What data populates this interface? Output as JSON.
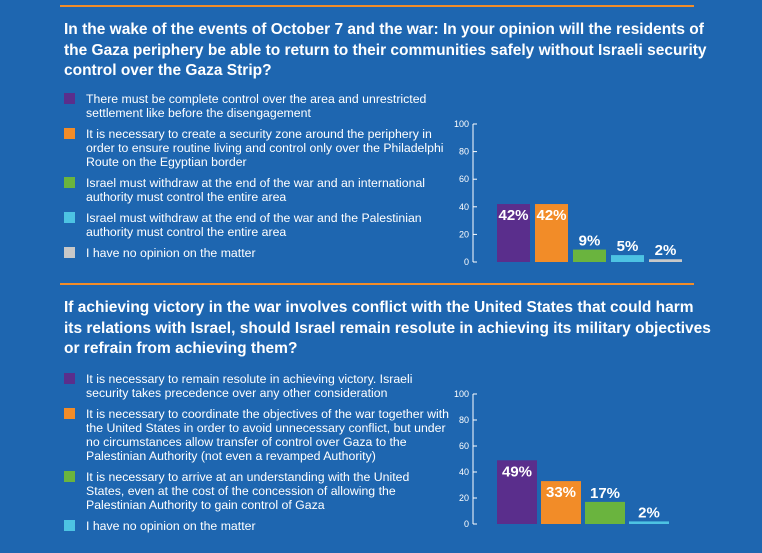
{
  "colors": {
    "background": "#1e66b0",
    "rule": "#f28c28",
    "purple": "#5a2e8c",
    "orange": "#f28c28",
    "green": "#6ab43e",
    "cyan": "#4dc3e3",
    "gray": "#c8c8c8"
  },
  "sections": [
    {
      "title": "In the wake of the events of October 7 and the war: In your opinion will the residents of the Gaza periphery be able to return to their communities safely without Israeli security control over the Gaza Strip?",
      "legend": [
        {
          "text": "There must be complete control over the area and unrestricted settlement like before the disengagement",
          "color": "#5a2e8c"
        },
        {
          "text": "It is necessary to create a security zone around the periphery in order to ensure routine living and control only over the Philadelphi Route on the Egyptian border",
          "color": "#f28c28"
        },
        {
          "text": "Israel must withdraw at the end of the war and an international authority must control the entire area",
          "color": "#6ab43e"
        },
        {
          "text": "Israel must withdraw at the end of the war and the Palestinian authority must control the entire area",
          "color": "#4dc3e3"
        },
        {
          "text": "I have no opinion on the matter",
          "color": "#c8c8c8"
        }
      ]
    },
    {
      "title": "If achieving victory in the war involves conflict with the United States that could harm its relations with Israel, should Israel remain resolute in achieving its military objectives or refrain from achieving them?",
      "legend": [
        {
          "text": "It is necessary to remain resolute in achieving victory. Israeli security takes precedence over any other consideration",
          "color": "#5a2e8c"
        },
        {
          "text": "It is necessary to coordinate the objectives of the war together with the United States in order to avoid unnecessary conflict, but under no circumstances allow transfer of control over Gaza to the Palestinian Authority (not even a revamped Authority)",
          "color": "#f28c28"
        },
        {
          "text": "It is necessary to arrive at an understanding with the United States, even at the cost of the concession of allowing the Palestinian Authority to gain control of Gaza",
          "color": "#6ab43e"
        },
        {
          "text": "I have no opinion on the matter",
          "color": "#4dc3e3"
        }
      ]
    }
  ],
  "chart_data": [
    {
      "type": "bar",
      "values": [
        42,
        42,
        9,
        5,
        2
      ],
      "labels": [
        "42%",
        "42%",
        "9%",
        "5%",
        "2%"
      ],
      "colors": [
        "#5a2e8c",
        "#f28c28",
        "#6ab43e",
        "#4dc3e3",
        "#c8c8c8"
      ],
      "yticks": [
        "0",
        "20",
        "40",
        "60",
        "80",
        "100"
      ],
      "ylim": [
        0,
        100
      ]
    },
    {
      "type": "bar",
      "values": [
        49,
        33,
        17,
        2
      ],
      "labels": [
        "49%",
        "33%",
        "17%",
        "2%"
      ],
      "colors": [
        "#5a2e8c",
        "#f28c28",
        "#6ab43e",
        "#4dc3e3"
      ],
      "yticks": [
        "0",
        "20",
        "40",
        "60",
        "80",
        "100"
      ],
      "ylim": [
        0,
        100
      ]
    }
  ]
}
